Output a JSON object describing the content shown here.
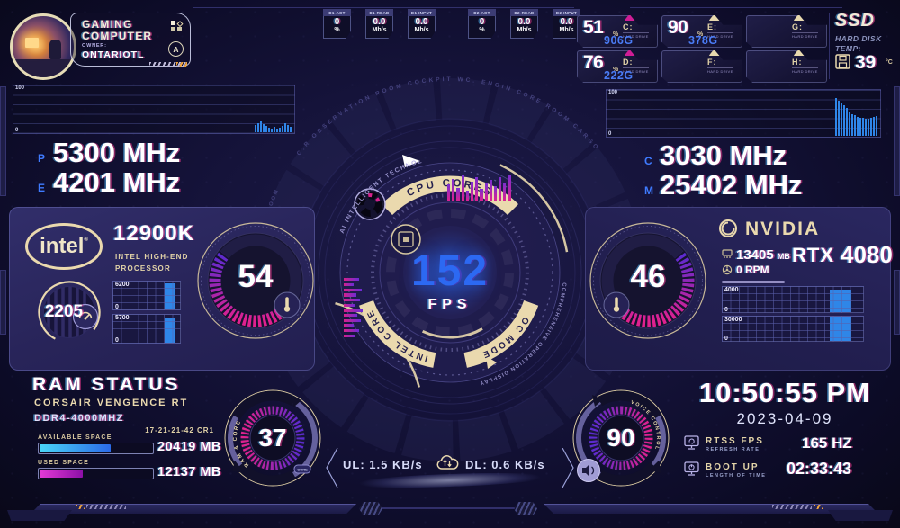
{
  "colors": {
    "accent_blue": "#2f6ff5",
    "accent_magenta": "#cf1d96",
    "accent_purple": "#6b2bd6",
    "cream": "#e8d9ae",
    "bar_blue": "#2f86e8"
  },
  "icons": {
    "circle_a_glyph": "A"
  },
  "profile": {
    "title_line1": "GAMING",
    "title_line2": "COMPUTER",
    "owner_label": "OWNER:",
    "owner_name": "ONTARIOTL"
  },
  "net_badges": [
    {
      "label": "D1-ACT",
      "value": "0",
      "unit": "%"
    },
    {
      "label": "D1-READ",
      "value": "0.0",
      "unit": "Mb/s"
    },
    {
      "label": "D1-INPUT",
      "value": "0.0",
      "unit": "Mb/s"
    },
    {
      "label": "D2-ACT",
      "value": "0",
      "unit": "%"
    },
    {
      "label": "D2-READ",
      "value": "0.0",
      "unit": "Mb/s"
    },
    {
      "label": "D2-INPUT",
      "value": "0.0",
      "unit": "Mb/s"
    }
  ],
  "drives": [
    {
      "percent": "51",
      "mark": "%",
      "letter": "C:",
      "sub": "HARD DRIVE",
      "size": "906G",
      "accent": "#cf1d96"
    },
    {
      "percent": "90",
      "mark": "%",
      "letter": "E:",
      "sub": "HARD DRIVE",
      "size": "378G",
      "accent": "#e8d9ae"
    },
    {
      "percent": "",
      "mark": "",
      "letter": "G:",
      "sub": "HARD DRIVE",
      "size": "",
      "accent": "#e8d9ae"
    },
    {
      "percent": "76",
      "mark": "%",
      "letter": "D:",
      "sub": "HARD DRIVE",
      "size": "222G",
      "accent": "#cf1d96"
    },
    {
      "percent": "",
      "mark": "",
      "letter": "F:",
      "sub": "HARD DRIVE",
      "size": "",
      "accent": "#e8d9ae"
    },
    {
      "percent": "",
      "mark": "",
      "letter": "H:",
      "sub": "HARD DRIVE",
      "size": "",
      "accent": "#e8d9ae"
    }
  ],
  "ssd": {
    "title": "SSD",
    "sub1": "HARD DISK",
    "sub2": "TEMP:",
    "value": "39",
    "unit": "°C"
  },
  "cpu_freq": {
    "chart": {
      "max": "100",
      "min": "0",
      "bars": [
        16,
        20,
        24,
        18,
        14,
        11,
        9,
        13,
        9,
        11,
        15,
        20,
        17,
        12
      ]
    },
    "rows": [
      {
        "key": "P",
        "value": "5300 MHz"
      },
      {
        "key": "E",
        "value": "4201 MHz"
      }
    ]
  },
  "gpu_freq": {
    "chart": {
      "max": "100",
      "min": "0",
      "bars": [
        88,
        82,
        76,
        70,
        64,
        56,
        50,
        47,
        44,
        42,
        41,
        40,
        39,
        41,
        43,
        45
      ]
    },
    "rows": [
      {
        "key": "C",
        "value": "3030 MHz"
      },
      {
        "key": "M",
        "value": "25402 MHz"
      }
    ]
  },
  "cpu_panel": {
    "brand": "intel",
    "reg": "®",
    "model": "12900K",
    "desc1": "INTEL HIGH-END",
    "desc2": "PROCESSOR",
    "fan_rpm": "2205",
    "temp": "54",
    "charts": [
      {
        "max": "6200",
        "min": "0",
        "fill": 88
      },
      {
        "max": "5700",
        "min": "0",
        "fill": 85
      }
    ]
  },
  "gpu_panel": {
    "brand": "NVIDIA",
    "mem_value": "13405",
    "mem_unit": "MB",
    "model_prefix": "RTX",
    "model_number": "4080",
    "fan": "0 RPM",
    "temp": "46",
    "charts": [
      {
        "max": "4000",
        "min": "0",
        "fill": 82
      },
      {
        "max": "30000",
        "min": "0",
        "fill": 93
      }
    ]
  },
  "center_gauge": {
    "fps_value": "152",
    "fps_label": "FPS",
    "arc_top": "CPU CORES",
    "arc_left": "INTEL CORE",
    "arc_right": "OC MODE",
    "arc_note_left": "AI INTELLIGENT TECHNOLOGY",
    "arc_note_right": "COMPREHENSIVE OPERATION DISPLAY",
    "top_bars": [
      55,
      75,
      45,
      85,
      35,
      65,
      80,
      40,
      60,
      72,
      50,
      78,
      58,
      88
    ],
    "left_bars": [
      55,
      35,
      65,
      45,
      60,
      40,
      70,
      50,
      62,
      38,
      58,
      44
    ]
  },
  "ram": {
    "title": "RAM STATUS",
    "brand": "CORSAIR VENGENCE RT",
    "spec": "DDR4-4000MHZ",
    "timings": "17-21-21-42 CR1",
    "available_label": "AVAILABLE SPACE",
    "available_value": "20419 MB",
    "available_pct": 62,
    "used_label": "USED SPACE",
    "used_value": "12137 MB",
    "used_pct": 38
  },
  "gauge_ram_core": {
    "value": "37",
    "label": "RAM & CORE",
    "badge": "CORE"
  },
  "gauge_volume": {
    "value": "90",
    "label": "VOICE CONTROL"
  },
  "network": {
    "ul_label": "UL: 1.5 KB/s",
    "dl_label": "DL: 0.6 KB/s"
  },
  "clock": {
    "time": "10:50:55 PM",
    "date": "2023-04-09",
    "rows": [
      {
        "label1": "RTSS FPS",
        "label2": "REFRESH RATE",
        "value": "165 HZ"
      },
      {
        "label1": "BOOT UP",
        "label2": "LENGTH OF TIME",
        "value": "02:33:43"
      }
    ]
  },
  "background": {
    "watermark_top": "C.R OBSERVATION ROOM COCKPIT WC. ENGIN CORE ROOM CARGO",
    "watermark_left": "MAIN OPERATION ROOM"
  }
}
